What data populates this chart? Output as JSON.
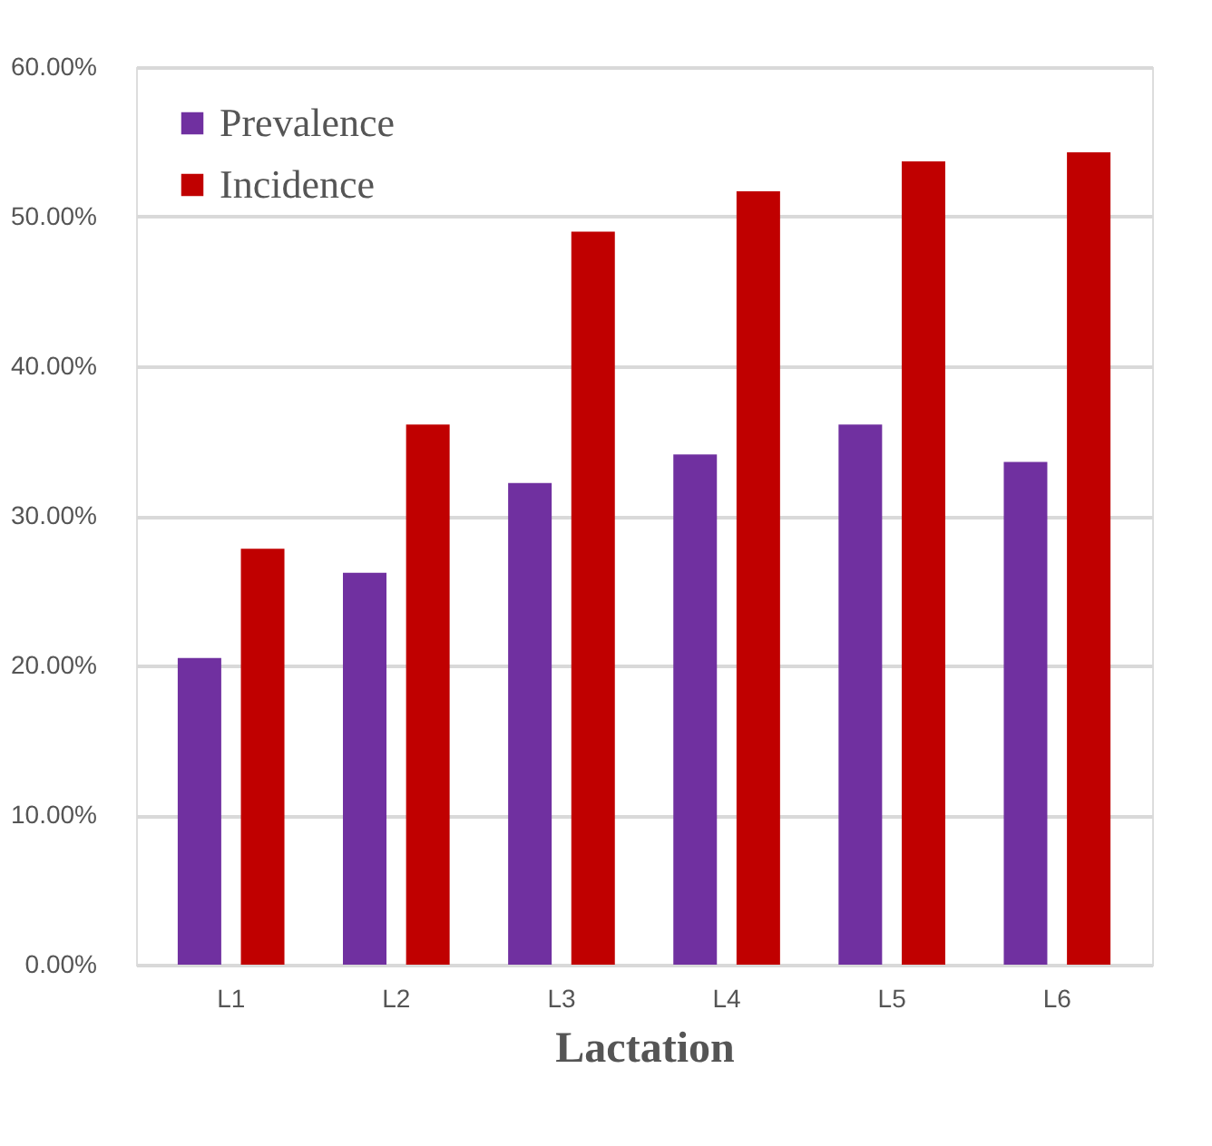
{
  "chart_data": {
    "type": "bar",
    "xlabel": "Lactation",
    "categories": [
      "L1",
      "L2",
      "L3",
      "L4",
      "L5",
      "L6"
    ],
    "series": [
      {
        "name": "Prevalence",
        "color": "#7030a0",
        "values": [
          20.5,
          26.2,
          32.2,
          34.1,
          36.1,
          33.6
        ]
      },
      {
        "name": "Incidence",
        "color": "#c00000",
        "values": [
          27.8,
          36.1,
          49.0,
          51.7,
          53.7,
          54.3
        ]
      }
    ],
    "ylim": [
      0,
      60
    ],
    "yticks": [
      {
        "value": 0,
        "label": "0.00%"
      },
      {
        "value": 10,
        "label": "10.00%"
      },
      {
        "value": 20,
        "label": "20.00%"
      },
      {
        "value": 30,
        "label": "30.00%"
      },
      {
        "value": 40,
        "label": "40.00%"
      },
      {
        "value": 50,
        "label": "50.00%"
      },
      {
        "value": 60,
        "label": "60.00%"
      }
    ],
    "grid": "y",
    "legend": "top left"
  }
}
